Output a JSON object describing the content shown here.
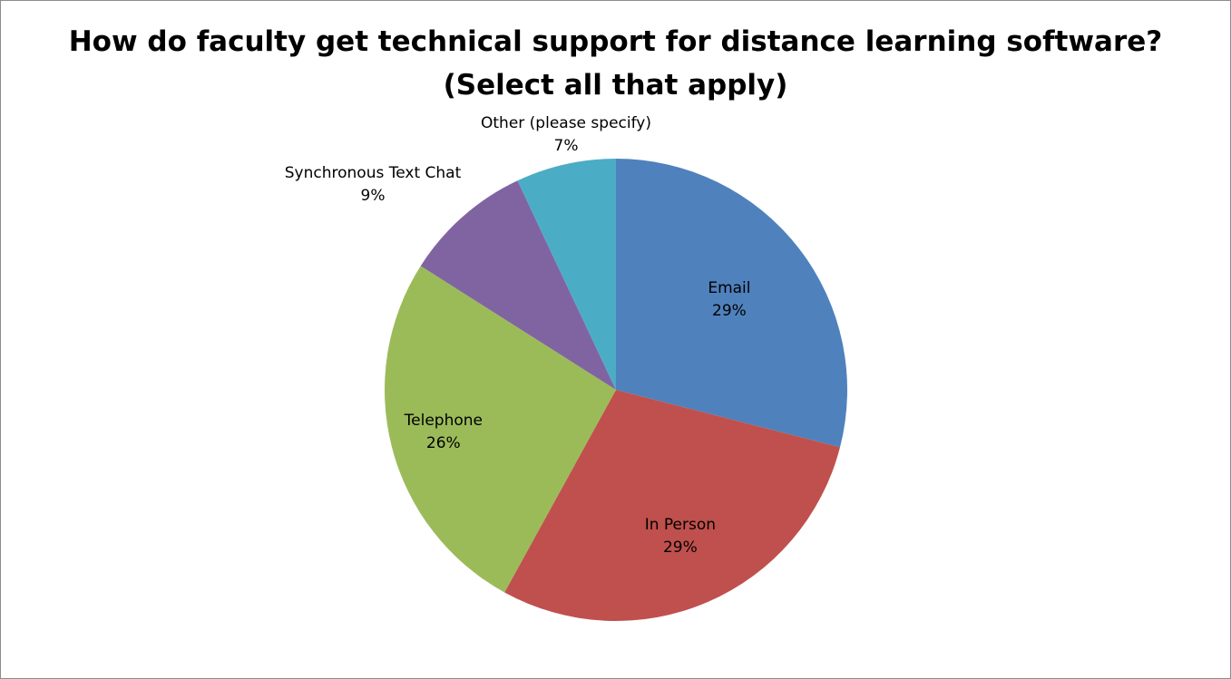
{
  "chart_data": {
    "type": "pie",
    "title": "How do faculty get technical support for distance learning software?",
    "subtitle": "(Select all that apply)",
    "slices": [
      {
        "label": "Email",
        "value": 29,
        "display": "29%",
        "color": "#4F81BD"
      },
      {
        "label": "In Person",
        "value": 29,
        "display": "29%",
        "color": "#C0504D"
      },
      {
        "label": "Telephone",
        "value": 26,
        "display": "26%",
        "color": "#9BBB59"
      },
      {
        "label": "Synchronous Text Chat",
        "value": 9,
        "display": "9%",
        "color": "#8064A2"
      },
      {
        "label": "Other (please specify)",
        "value": 7,
        "display": "7%",
        "color": "#4BACC6"
      }
    ],
    "start": "12 o'clock",
    "direction": "clockwise",
    "legend": "none"
  }
}
